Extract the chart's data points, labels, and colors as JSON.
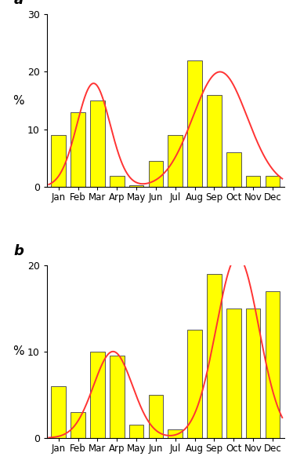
{
  "months": [
    "Jan",
    "Feb",
    "Mar",
    "Arp",
    "May",
    "Jun",
    "Jul",
    "Aug",
    "Sep",
    "Oct",
    "Nov",
    "Dec"
  ],
  "values_a": [
    9,
    13,
    15,
    2,
    0.3,
    4.5,
    9,
    22,
    16,
    6,
    2,
    2
  ],
  "values_b": [
    6,
    3,
    10,
    9.5,
    1.5,
    5,
    1,
    12.5,
    19,
    15,
    15,
    17
  ],
  "bar_color": "#FFFF00",
  "bar_edge_color": "#555555",
  "curve_color": "#FF3333",
  "ylabel": "%",
  "ylim_a": [
    0,
    30
  ],
  "ylim_b": [
    0,
    20
  ],
  "yticks_a": [
    0,
    10,
    20,
    30
  ],
  "yticks_b": [
    0,
    10,
    20
  ],
  "label_a": "a",
  "label_b": "b",
  "curve_a_peaks": [
    {
      "mu": 1.8,
      "sigma": 0.85,
      "amp": 18
    },
    {
      "mu": 8.3,
      "sigma": 1.4,
      "amp": 20
    }
  ],
  "curve_b_peaks": [
    {
      "mu": 2.8,
      "sigma": 1.0,
      "amp": 10
    },
    {
      "mu": 9.2,
      "sigma": 1.1,
      "amp": 21
    }
  ]
}
